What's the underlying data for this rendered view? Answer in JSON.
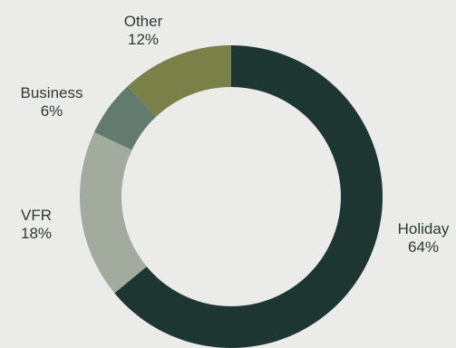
{
  "chart_data": {
    "type": "pie",
    "variant": "donut",
    "title": "",
    "categories": [
      "Holiday",
      "VFR",
      "Business",
      "Other"
    ],
    "values": [
      64,
      18,
      6,
      12
    ],
    "labels": [
      "64%",
      "18%",
      "6%",
      "12%"
    ],
    "colors": [
      "#1d3631",
      "#a3ab9e",
      "#637b6f",
      "#7a8148"
    ],
    "legend": "none",
    "start": "top",
    "direction": "clockwise"
  }
}
